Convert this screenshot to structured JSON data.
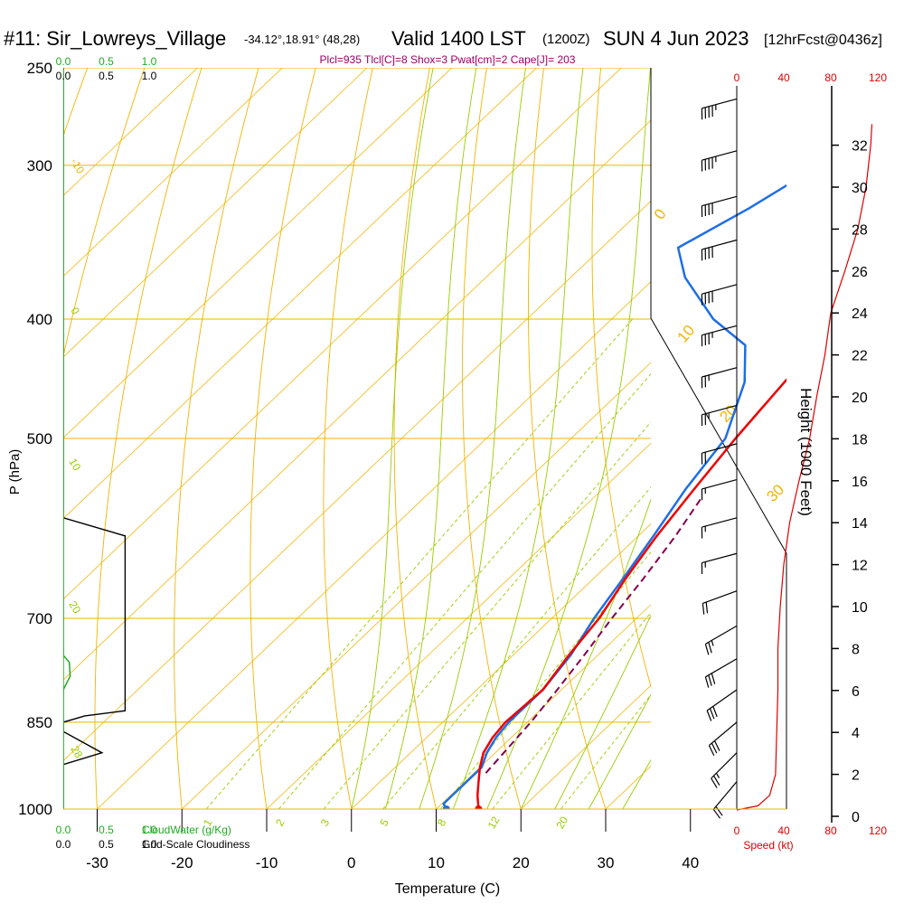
{
  "header": {
    "station": "#11: Sir_Lowreys_Village",
    "coords": "-34.12°,18.91° (48,28)",
    "valid": "Valid 1400 LST",
    "utc": "(1200Z)",
    "date": "SUN 4 Jun 2023",
    "fcst": "[12hrFcst@0436z]",
    "params": "Plcl=935 Tlcl[C]=8 Shox=3 Pwat[cm]=2 Cape[J]= 203"
  },
  "colors": {
    "isobar": "#f0b400",
    "dry_adiabat": "#f0b400",
    "moist_adiabat": "#99cc00",
    "mixing_ratio": "#99cc00",
    "temperature": "#ee0000",
    "dewpoint": "#1e6ee6",
    "parcel": "#800050",
    "cloud_water": "#22aa22",
    "cloudiness": "#000000",
    "speed": "#dd0000",
    "params_text": "#990066"
  },
  "chart_data": {
    "type": "skew-t",
    "title": "#11: Sir_Lowreys_Village Valid 1400 LST (1200Z) SUN 4 Jun 2023",
    "xlabel": "Temperature (C)",
    "ylabel": "P (hPa)",
    "right_axis_label": "Height (1000 Feet)",
    "x_ticks": [
      "-30",
      "-20",
      "-10",
      "0",
      "10",
      "20",
      "30",
      "40"
    ],
    "x_range": [
      -34,
      46
    ],
    "pressure_range": [
      1000,
      250
    ],
    "pressure_ticks": [
      "250",
      "300",
      "400",
      "500",
      "700",
      "850",
      "1000"
    ],
    "pressure_levels": [
      250,
      300,
      400,
      500,
      700,
      850,
      1000
    ],
    "height_ticks_kft": [
      "0",
      "2",
      "4",
      "6",
      "8",
      "10",
      "12",
      "14",
      "16",
      "18",
      "20",
      "22",
      "24",
      "26",
      "28",
      "30",
      "32"
    ],
    "dry_adiabat_labels": [
      "-10",
      "0",
      "10",
      "20",
      "30"
    ],
    "moist_adiabat_labels": [
      "0",
      "10",
      "20",
      "26",
      "28"
    ],
    "mixing_ratio_labels": [
      "1",
      "2",
      "3",
      "5",
      "8",
      "12",
      "20"
    ],
    "mixing_ratio_values": [
      1,
      2,
      3,
      5,
      8,
      12,
      20
    ],
    "moist_adiabat_thetaw": [
      0,
      4,
      8,
      12,
      16,
      20,
      24,
      28,
      32
    ],
    "temperature_profile": [
      [
        1000,
        15
      ],
      [
        975,
        13.2
      ],
      [
        950,
        11.6
      ],
      [
        925,
        10.0
      ],
      [
        900,
        8.6
      ],
      [
        875,
        7.8
      ],
      [
        850,
        7.4
      ],
      [
        825,
        7.6
      ],
      [
        800,
        7.8
      ],
      [
        775,
        7.2
      ],
      [
        750,
        6.6
      ],
      [
        725,
        6.1
      ],
      [
        700,
        5.6
      ],
      [
        650,
        3.8
      ],
      [
        600,
        2.2
      ],
      [
        550,
        0.8
      ],
      [
        500,
        -0.6
      ],
      [
        450,
        -1.8
      ],
      [
        400,
        -3.2
      ],
      [
        350,
        -3.2
      ],
      [
        300,
        -2.6
      ],
      [
        265,
        -1.8
      ]
    ],
    "dewpoint_profile": [
      [
        1000,
        11.2
      ],
      [
        990,
        10.2
      ],
      [
        975,
        10.2
      ],
      [
        950,
        10.2
      ],
      [
        925,
        10.2
      ],
      [
        900,
        9.0
      ],
      [
        875,
        8.2
      ],
      [
        850,
        7.8
      ],
      [
        800,
        7.8
      ],
      [
        750,
        6.8
      ],
      [
        700,
        5.0
      ],
      [
        650,
        3.5
      ],
      [
        600,
        1.8
      ],
      [
        550,
        -0.2
      ],
      [
        500,
        -1.8
      ],
      [
        450,
        -6.5
      ],
      [
        420,
        -11.0
      ],
      [
        400,
        -18.0
      ],
      [
        370,
        -26.5
      ],
      [
        350,
        -31.0
      ],
      [
        325,
        -27.5
      ],
      [
        300,
        -24.5
      ],
      [
        280,
        -22.4
      ],
      [
        265,
        -21.8
      ]
    ],
    "parcel_profile": [
      [
        935,
        11.4
      ],
      [
        900,
        11.0
      ],
      [
        850,
        10.4
      ],
      [
        800,
        9.5
      ],
      [
        750,
        8.4
      ],
      [
        700,
        7.1
      ],
      [
        650,
        5.9
      ],
      [
        600,
        4.4
      ],
      [
        560,
        2.8
      ]
    ],
    "speed_profile_kt": [
      [
        0.3,
        0
      ],
      [
        0.5,
        18
      ],
      [
        1.0,
        28
      ],
      [
        2.0,
        33
      ],
      [
        4.0,
        34
      ],
      [
        6.0,
        35
      ],
      [
        8.0,
        35
      ],
      [
        10.0,
        37
      ],
      [
        12.0,
        40
      ],
      [
        14.0,
        45
      ],
      [
        16.0,
        53
      ],
      [
        18.0,
        62
      ],
      [
        20.0,
        68
      ],
      [
        22.0,
        75
      ],
      [
        24.0,
        80
      ],
      [
        26.0,
        92
      ],
      [
        28.0,
        103
      ],
      [
        30.0,
        110
      ],
      [
        32.0,
        114
      ],
      [
        33.0,
        115
      ]
    ],
    "speed_ticks": [
      "0",
      "40",
      "80",
      "120"
    ],
    "speed_range": [
      0,
      120
    ],
    "speed_label": "Speed (kt)",
    "cloud_water_label": "CloudWater (g/Kg)",
    "cloudiness_label": "Grid-Scale Cloudiness",
    "cloud_water_ticks": [
      "0.0",
      "0.5",
      "1.0"
    ],
    "cloudiness_ticks": [
      "0.0",
      "0.5",
      "1.0"
    ],
    "cloudiness_profile": [
      [
        1000,
        0.0
      ],
      [
        920,
        0.0
      ],
      [
        900,
        0.45
      ],
      [
        865,
        0.0
      ],
      [
        850,
        0.0
      ],
      [
        840,
        0.25
      ],
      [
        832,
        0.72
      ],
      [
        630,
        0.72
      ],
      [
        600,
        0.72
      ],
      [
        580,
        0.0
      ],
      [
        250,
        0.0
      ]
    ],
    "cloud_water_profile": [
      [
        1000,
        0.0
      ],
      [
        800,
        0.0
      ],
      [
        780,
        0.08
      ],
      [
        760,
        0.07
      ],
      [
        750,
        0.0
      ],
      [
        250,
        0.0
      ]
    ],
    "wind_barbs": [
      {
        "p": 265,
        "dir": 285,
        "kt": 45
      },
      {
        "p": 292,
        "dir": 285,
        "kt": 45
      },
      {
        "p": 318,
        "dir": 285,
        "kt": 40
      },
      {
        "p": 345,
        "dir": 285,
        "kt": 40
      },
      {
        "p": 375,
        "dir": 285,
        "kt": 40
      },
      {
        "p": 405,
        "dir": 285,
        "kt": 35
      },
      {
        "p": 438,
        "dir": 285,
        "kt": 25
      },
      {
        "p": 470,
        "dir": 285,
        "kt": 25
      },
      {
        "p": 505,
        "dir": 285,
        "kt": 20
      },
      {
        "p": 540,
        "dir": 285,
        "kt": 15
      },
      {
        "p": 580,
        "dir": 285,
        "kt": 15
      },
      {
        "p": 620,
        "dir": 285,
        "kt": 15
      },
      {
        "p": 665,
        "dir": 290,
        "kt": 20
      },
      {
        "p": 710,
        "dir": 300,
        "kt": 25
      },
      {
        "p": 755,
        "dir": 300,
        "kt": 30
      },
      {
        "p": 800,
        "dir": 305,
        "kt": 30
      },
      {
        "p": 850,
        "dir": 310,
        "kt": 30
      },
      {
        "p": 900,
        "dir": 315,
        "kt": 25
      },
      {
        "p": 950,
        "dir": 320,
        "kt": 20
      }
    ]
  }
}
